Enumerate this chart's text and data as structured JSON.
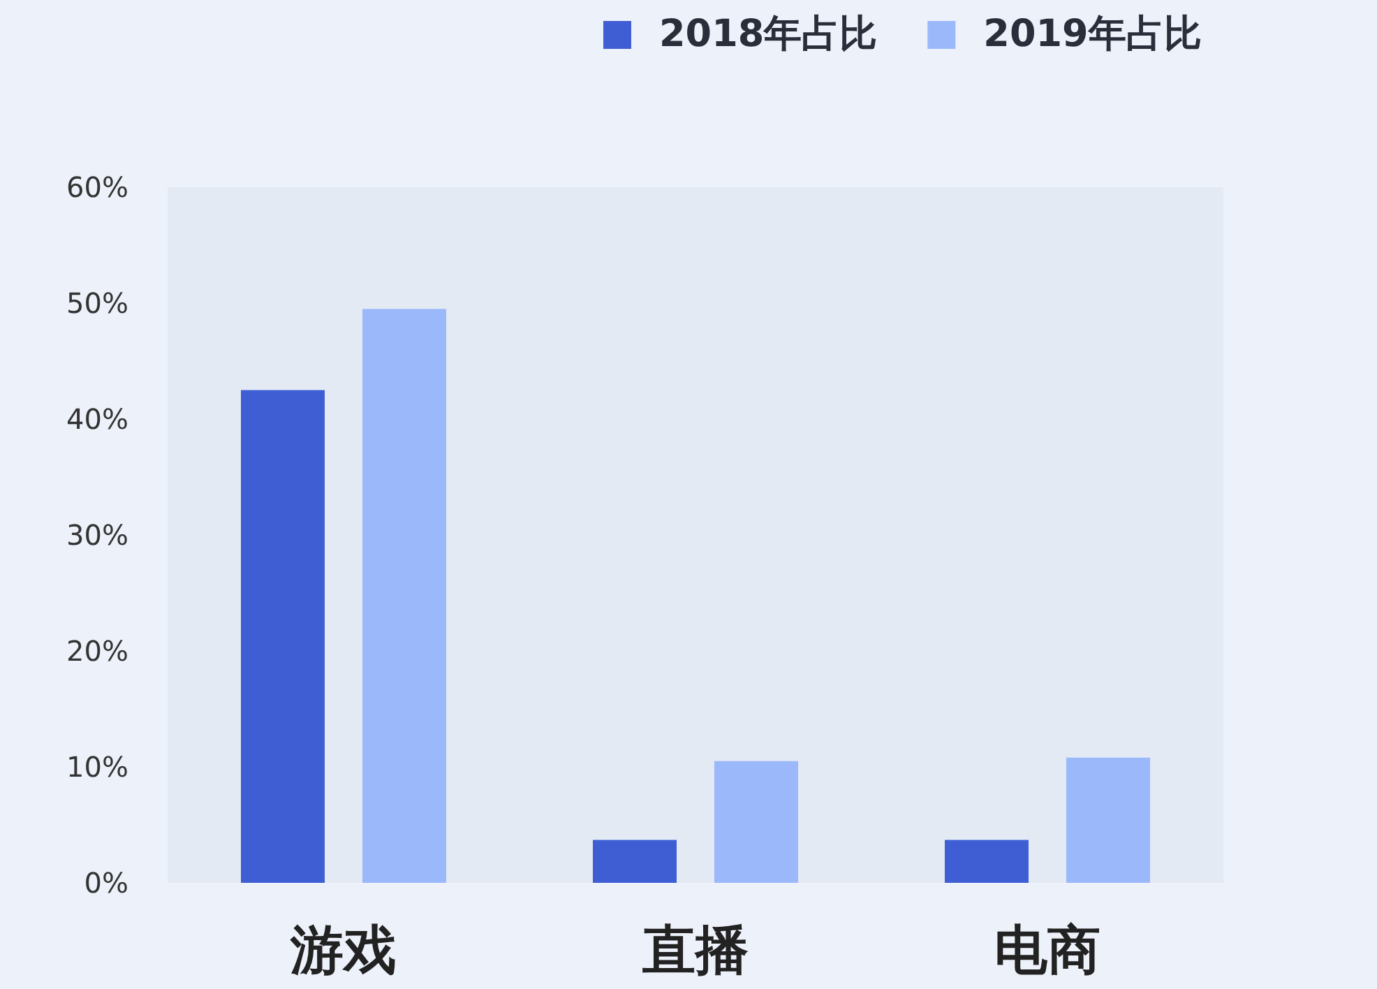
{
  "chart_data": {
    "type": "bar",
    "categories": [
      "游戏",
      "直播",
      "电商"
    ],
    "series": [
      {
        "name": "2018年占比",
        "color": "#3f5ed3",
        "values": [
          42.5,
          3.7,
          3.7
        ]
      },
      {
        "name": "2019年占比",
        "color": "#9bb8fb",
        "values": [
          49.5,
          10.5,
          10.8
        ]
      }
    ],
    "ylim": [
      0,
      60
    ],
    "yticks": [
      {
        "value": 0,
        "label": "0%"
      },
      {
        "value": 10,
        "label": "10%"
      },
      {
        "value": 20,
        "label": "20%"
      },
      {
        "value": 30,
        "label": "30%"
      },
      {
        "value": 40,
        "label": "40%"
      },
      {
        "value": 50,
        "label": "50%"
      },
      {
        "value": 60,
        "label": "60%"
      }
    ],
    "grid": false,
    "legend": "top right"
  }
}
